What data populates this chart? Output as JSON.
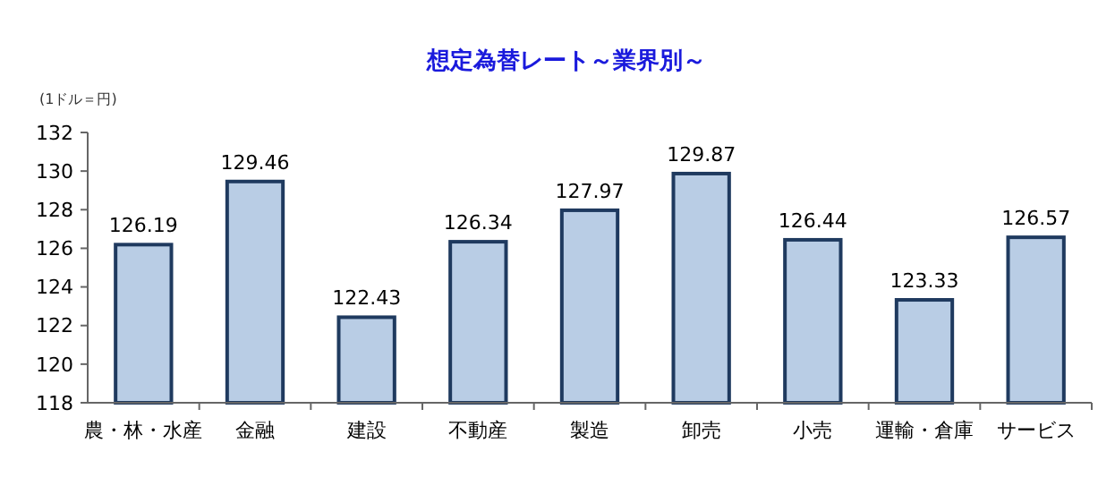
{
  "chart_data": {
    "type": "bar",
    "title": "想定為替レート～業界別～",
    "ylabel": "(1ドル＝円)",
    "categories": [
      "農・林・水産",
      "金融",
      "建設",
      "不動産",
      "製造",
      "卸売",
      "小売",
      "運輸・倉庫",
      "サービス"
    ],
    "values": [
      126.19,
      129.46,
      122.43,
      126.34,
      127.97,
      129.87,
      126.44,
      123.33,
      126.57
    ],
    "color": "#b9cde5",
    "ylim": [
      118,
      132
    ],
    "yticks": [
      118,
      120,
      122,
      124,
      126,
      128,
      130,
      132
    ],
    "data_labels": true,
    "grid": false
  }
}
